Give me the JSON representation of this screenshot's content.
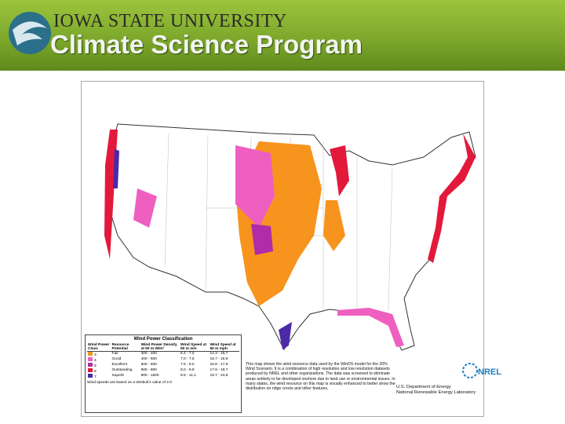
{
  "header": {
    "university": "IOWA STATE UNIVERSITY",
    "program": "Climate Science Program"
  },
  "legend": {
    "title": "Wind Power Classification",
    "columns": [
      "Wind Power Class",
      "Resource Potential",
      "Wind Power Density at 50 m W/m²",
      "Wind Speed at 50 m m/s",
      "Wind Speed at 50 m mph"
    ],
    "rows": [
      {
        "cells": [
          "3",
          "Fair",
          "300 - 400",
          "6.4 - 7.0",
          "14.3 - 15.7"
        ],
        "color": "#f7941d"
      },
      {
        "cells": [
          "4",
          "Good",
          "400 - 500",
          "7.0 - 7.5",
          "15.7 - 16.8"
        ],
        "color": "#ee5fc0"
      },
      {
        "cells": [
          "5",
          "Excellent",
          "500 - 600",
          "7.5 - 8.0",
          "16.8 - 17.9"
        ],
        "color": "#b02ca8"
      },
      {
        "cells": [
          "6",
          "Outstanding",
          "600 - 800",
          "8.0 - 8.8",
          "17.9 - 19.7"
        ],
        "color": "#e3193c"
      },
      {
        "cells": [
          "7",
          "Superb",
          "800 - 1600",
          "8.8 - 11.1",
          "19.7 - 24.8"
        ],
        "color": "#4b2aa8"
      }
    ],
    "footnote": "Wind speeds are based on a Weibull k value of 2.0"
  },
  "description": "This map shows the wind resource data used by the WinDS model for the 20% Wind Scenario. It is a combination of high resolution and low resolution datasets produced by NREL and other organizations. The data was screened to eliminate areas unlikely to be developed onshore due to land use or environmental issues. In many states, the wind resource on this map is visually enhanced to better show the distribution on ridge crests and other features.",
  "credit": {
    "agency": "U.S. Department of Energy",
    "lab": "National Renewable Energy Laboratory",
    "logo": "NREL"
  }
}
